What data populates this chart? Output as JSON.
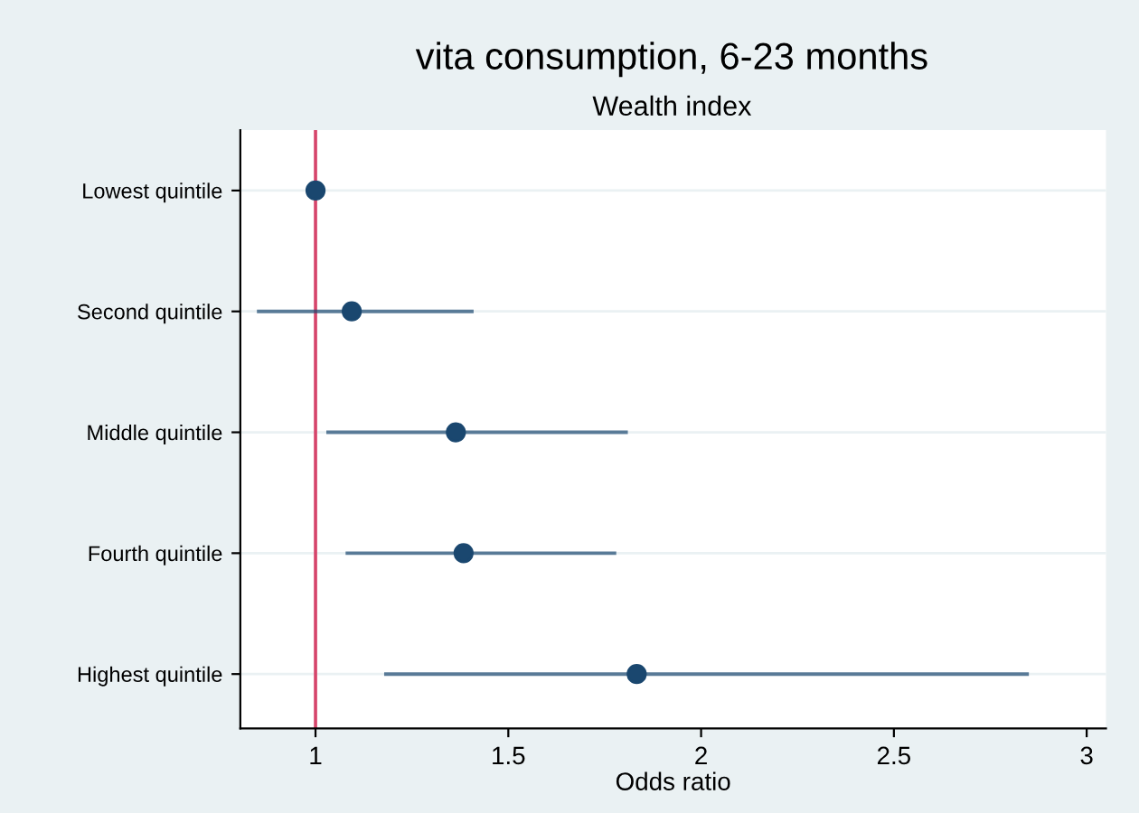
{
  "chart_data": {
    "type": "scatter",
    "orientation": "horizontal",
    "title": "vita consumption, 6-23 months",
    "subtitle": "Wealth index",
    "xlabel": "Odds ratio",
    "categories": [
      "Lowest quintile",
      "Second quintile",
      "Middle quintile",
      "Fourth quintile",
      "Highest quintile"
    ],
    "values": [
      1.0,
      1.094,
      1.364,
      1.384,
      1.833
    ],
    "errors": [
      null,
      [
        0.848,
        1.41
      ],
      [
        1.028,
        1.81
      ],
      [
        1.078,
        1.78
      ],
      [
        1.178,
        2.85
      ]
    ],
    "color": "#1a476f",
    "marker": "circle",
    "xlim": [
      0.805,
      3.05
    ],
    "xticks": [
      1,
      1.5,
      2,
      2.5,
      3
    ],
    "ref_lines": [
      {
        "axis": "x",
        "value": 1,
        "color": "#d6456b"
      }
    ],
    "grid": "y",
    "legend": false
  }
}
